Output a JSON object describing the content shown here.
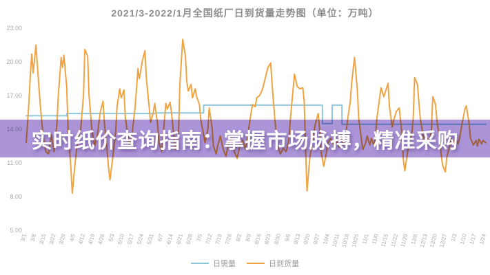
{
  "banner": {
    "text": "实时纸价查询指南：掌握市场脉搏，精准采购",
    "background_color": "#ab94d8",
    "text_color": "#ffffff"
  },
  "chart_data": {
    "type": "line",
    "title": "2021/3-2022/1月全国纸厂日到货量走势图（单位：万吨）",
    "unit": "万吨",
    "ylim": [
      5,
      23
    ],
    "y_ticks": [
      23,
      20,
      17,
      14,
      11,
      8,
      5
    ],
    "x_tick_labels": [
      "3/1",
      "3/8",
      "3/15",
      "3/22",
      "3/29",
      "4/5",
      "4/12",
      "4/19",
      "4/26",
      "5/3",
      "5/10",
      "5/17",
      "5/24",
      "5/31",
      "6/7",
      "6/14",
      "6/21",
      "6/28",
      "7/5",
      "7/12",
      "7/19",
      "7/26",
      "8/2",
      "8/9",
      "8/16",
      "8/23",
      "8/30",
      "9/6",
      "9/13",
      "9/20",
      "9/27",
      "10/4",
      "10/11",
      "10/18",
      "10/25",
      "11/1",
      "11/8",
      "11/15",
      "11/22",
      "11/29",
      "12/6",
      "12/13",
      "12/20",
      "12/27",
      "1/3",
      "1/10",
      "1/17",
      "1/24"
    ],
    "x_tick_interval_days": 7,
    "x_domain_days": [
      0,
      329
    ],
    "grid": false,
    "legend_position": "bottom",
    "series": [
      {
        "name": "日需量",
        "color": "#8ec6da",
        "points": [
          [
            0,
            15.2
          ],
          [
            29,
            15.2
          ],
          [
            29,
            15.4
          ],
          [
            93,
            15.4
          ],
          [
            93,
            15.45
          ],
          [
            127,
            15.45
          ],
          [
            127,
            16.15
          ],
          [
            212,
            16.15
          ],
          [
            212,
            14.5
          ],
          [
            219,
            14.5
          ],
          [
            219,
            16.15
          ],
          [
            226,
            16.15
          ],
          [
            226,
            14.45
          ],
          [
            329,
            14.45
          ]
        ]
      },
      {
        "name": "日到货量",
        "color": "#f0a342",
        "points": [
          [
            0,
            12.8
          ],
          [
            2,
            16.5
          ],
          [
            3,
            19
          ],
          [
            4,
            20.7
          ],
          [
            5,
            19
          ],
          [
            7,
            21.5
          ],
          [
            9,
            18
          ],
          [
            10,
            16.3
          ],
          [
            12,
            13.5
          ],
          [
            14,
            12
          ],
          [
            16,
            11.8
          ],
          [
            18,
            13.5
          ],
          [
            20,
            12
          ],
          [
            22,
            14.5
          ],
          [
            23,
            17
          ],
          [
            25,
            20.4
          ],
          [
            26,
            19.5
          ],
          [
            27,
            20.6
          ],
          [
            29,
            17.8
          ],
          [
            30,
            14
          ],
          [
            32,
            10.5
          ],
          [
            33,
            8.3
          ],
          [
            35,
            11
          ],
          [
            37,
            13.2
          ],
          [
            39,
            14
          ],
          [
            41,
            17
          ],
          [
            42,
            21.1
          ],
          [
            44,
            20.5
          ],
          [
            45,
            17
          ],
          [
            47,
            14
          ],
          [
            49,
            12.5
          ],
          [
            51,
            13.5
          ],
          [
            53,
            15.5
          ],
          [
            55,
            16.5
          ],
          [
            56,
            14.5
          ],
          [
            58,
            12
          ],
          [
            59,
            10.5
          ],
          [
            60,
            9.5
          ],
          [
            62,
            11.5
          ],
          [
            64,
            13.8
          ],
          [
            65,
            16
          ],
          [
            67,
            17.6
          ],
          [
            68,
            16.8
          ],
          [
            70,
            17.5
          ],
          [
            71,
            15
          ],
          [
            73,
            13.2
          ],
          [
            74,
            12.5
          ],
          [
            76,
            13.8
          ],
          [
            78,
            16
          ],
          [
            80,
            19.4
          ],
          [
            81,
            18.5
          ],
          [
            83,
            20
          ],
          [
            85,
            21
          ],
          [
            86,
            18.5
          ],
          [
            88,
            16
          ],
          [
            89,
            14.6
          ],
          [
            91,
            15.5
          ],
          [
            92,
            16.3
          ],
          [
            94,
            14.5
          ],
          [
            95,
            12.8
          ],
          [
            97,
            12
          ],
          [
            98,
            13.5
          ],
          [
            100,
            16.3
          ],
          [
            101,
            15.8
          ],
          [
            103,
            16.4
          ],
          [
            104,
            15.5
          ],
          [
            106,
            13
          ],
          [
            107,
            12.2
          ],
          [
            109,
            13.5
          ],
          [
            110,
            18
          ],
          [
            112,
            22
          ],
          [
            114,
            20.5
          ],
          [
            115,
            18.2
          ],
          [
            116,
            17.4
          ],
          [
            118,
            18
          ],
          [
            119,
            16.8
          ],
          [
            121,
            17.6
          ],
          [
            122,
            16.9
          ],
          [
            124,
            16.2
          ],
          [
            125,
            14.8
          ],
          [
            127,
            13.5
          ],
          [
            128,
            12.8
          ],
          [
            130,
            14
          ],
          [
            131,
            15.9
          ],
          [
            133,
            14.2
          ],
          [
            134,
            12.5
          ],
          [
            136,
            11.8
          ],
          [
            137,
            12.5
          ],
          [
            139,
            13.4
          ],
          [
            141,
            12.2
          ],
          [
            143,
            11.6
          ],
          [
            145,
            12.8
          ],
          [
            147,
            13.2
          ],
          [
            149,
            12
          ],
          [
            151,
            11.4
          ],
          [
            153,
            12.6
          ],
          [
            155,
            13
          ],
          [
            157,
            12.2
          ],
          [
            159,
            13.8
          ],
          [
            161,
            15.5
          ],
          [
            162,
            16.2
          ],
          [
            164,
            16
          ],
          [
            165,
            16.8
          ],
          [
            167,
            17
          ],
          [
            169,
            17.5
          ],
          [
            171,
            18.5
          ],
          [
            173,
            19.5
          ],
          [
            175,
            19.9
          ],
          [
            176,
            18
          ],
          [
            178,
            14.8
          ],
          [
            180,
            12.5
          ],
          [
            182,
            11.8
          ],
          [
            184,
            12.3
          ],
          [
            186,
            12
          ],
          [
            188,
            13
          ],
          [
            189,
            14.8
          ],
          [
            191,
            17.5
          ],
          [
            192,
            18.9
          ],
          [
            194,
            17.8
          ],
          [
            196,
            17.6
          ],
          [
            198,
            17.7
          ],
          [
            199,
            16.5
          ],
          [
            200,
            12
          ],
          [
            201,
            8.5
          ],
          [
            203,
            11.5
          ],
          [
            205,
            13
          ],
          [
            207,
            14.5
          ],
          [
            209,
            15.4
          ],
          [
            210,
            14
          ],
          [
            211,
            12
          ],
          [
            213,
            10.7
          ],
          [
            215,
            12
          ],
          [
            216,
            12.8
          ],
          [
            218,
            13.2
          ],
          [
            220,
            12.6
          ],
          [
            222,
            13
          ],
          [
            224,
            12.4
          ],
          [
            225,
            13.5
          ],
          [
            227,
            12.6
          ],
          [
            229,
            13.8
          ],
          [
            230,
            14.8
          ],
          [
            232,
            16.5
          ],
          [
            233,
            18.2
          ],
          [
            235,
            20.4
          ],
          [
            237,
            17.5
          ],
          [
            238,
            15
          ],
          [
            240,
            13
          ],
          [
            241,
            12.2
          ],
          [
            243,
            12.8
          ],
          [
            244,
            13.4
          ],
          [
            246,
            12.6
          ],
          [
            247,
            13.2
          ],
          [
            249,
            12.5
          ],
          [
            250,
            13.4
          ],
          [
            251,
            15
          ],
          [
            253,
            16.8
          ],
          [
            254,
            17.7
          ],
          [
            256,
            16.9
          ],
          [
            257,
            17.3
          ],
          [
            259,
            18.1
          ],
          [
            260,
            16
          ],
          [
            262,
            14.2
          ],
          [
            263,
            14.8
          ],
          [
            265,
            15.6
          ],
          [
            267,
            15.9
          ],
          [
            269,
            13.5
          ],
          [
            270,
            11.2
          ],
          [
            271,
            10.3
          ],
          [
            273,
            12
          ],
          [
            274,
            12.8
          ],
          [
            276,
            13.6
          ],
          [
            277,
            15
          ],
          [
            278,
            18.6
          ],
          [
            280,
            18
          ],
          [
            281,
            16.5
          ],
          [
            282,
            15
          ],
          [
            284,
            13.5
          ],
          [
            285,
            12.8
          ],
          [
            287,
            13.2
          ],
          [
            288,
            12.6
          ],
          [
            290,
            13.8
          ],
          [
            291,
            16.9
          ],
          [
            293,
            16.2
          ],
          [
            294,
            14.8
          ],
          [
            296,
            13
          ],
          [
            297,
            11.8
          ],
          [
            298,
            10.8
          ],
          [
            300,
            10.2
          ],
          [
            301,
            11.5
          ],
          [
            303,
            12.4
          ],
          [
            304,
            13.2
          ],
          [
            306,
            12.7
          ],
          [
            307,
            13.3
          ],
          [
            309,
            12.7
          ],
          [
            310,
            13.1
          ],
          [
            312,
            14.5
          ],
          [
            314,
            15.8
          ],
          [
            315,
            16.1
          ],
          [
            317,
            14.5
          ],
          [
            318,
            13.2
          ],
          [
            320,
            12.6
          ],
          [
            322,
            13
          ],
          [
            323,
            12.5
          ],
          [
            324,
            13.1
          ],
          [
            326,
            12.7
          ],
          [
            327,
            13
          ],
          [
            329,
            12.8
          ]
        ]
      }
    ]
  }
}
